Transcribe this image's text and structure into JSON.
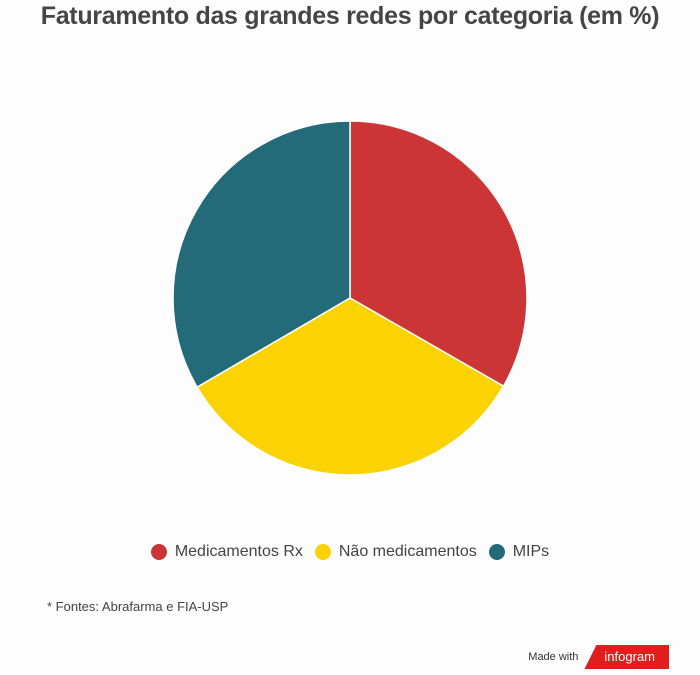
{
  "chart_data": {
    "type": "pie",
    "title": "Faturamento das grandes redes por categoria (em %)",
    "slices": [
      {
        "label": "Medicamentos Rx",
        "value": 33.3,
        "color": "#cc3535"
      },
      {
        "label": "Não medicamentos",
        "value": 33.3,
        "color": "#fbd304"
      },
      {
        "label": "MIPs",
        "value": 33.4,
        "color": "#246b79"
      }
    ],
    "legend_position": "bottom"
  },
  "source_note": "* Fontes: Abrafarma e FIA-USP",
  "footer": {
    "made_with": "Made with",
    "brand": "infogram"
  }
}
